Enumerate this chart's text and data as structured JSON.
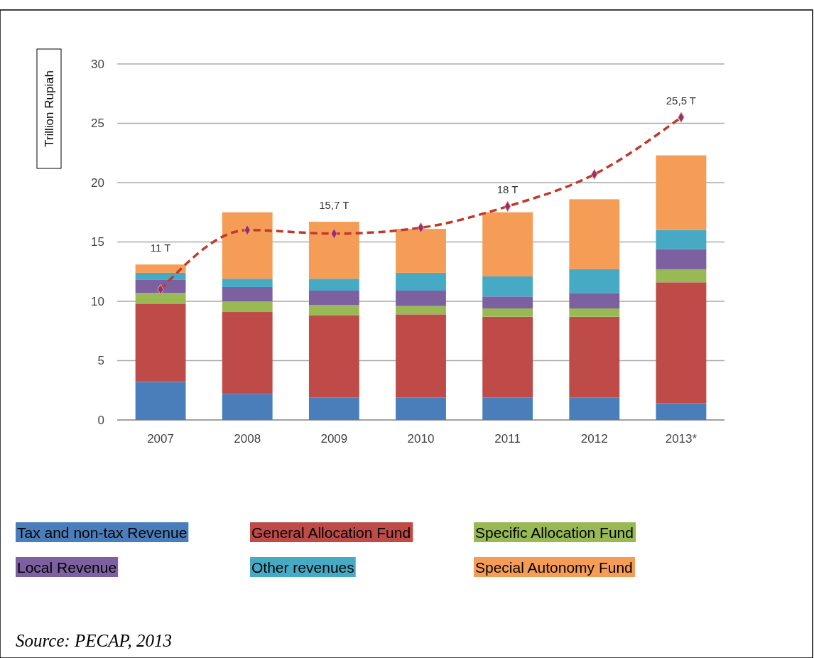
{
  "chart_data": {
    "type": "bar",
    "stacked": true,
    "ylabel": "Trillion Rupiah",
    "categories": [
      "2007",
      "2008",
      "2009",
      "2010",
      "2011",
      "2012",
      "2013*"
    ],
    "ylim": [
      0,
      30
    ],
    "yticks": [
      0,
      5,
      10,
      15,
      20,
      25,
      30
    ],
    "grid": "y",
    "legend": "bottom",
    "series": [
      {
        "name": "Tax and non-tax Revenue",
        "color": "#4a7ebb",
        "values": [
          3.2,
          2.2,
          1.9,
          1.9,
          1.9,
          1.9,
          1.4
        ]
      },
      {
        "name": "General Allocation Fund",
        "color": "#be4b48",
        "values": [
          6.6,
          6.9,
          6.9,
          7.0,
          6.8,
          6.8,
          10.2
        ]
      },
      {
        "name": "Specific Allocation Fund",
        "color": "#98b954",
        "values": [
          0.9,
          0.9,
          0.9,
          0.7,
          0.7,
          0.7,
          1.1
        ]
      },
      {
        "name": "Local Revenue",
        "color": "#7d60a0",
        "values": [
          1.1,
          1.2,
          1.2,
          1.3,
          1.0,
          1.3,
          1.7
        ]
      },
      {
        "name": "Other revenues",
        "color": "#46aac5",
        "values": [
          0.6,
          0.7,
          1.0,
          1.5,
          1.7,
          2.0,
          1.6
        ]
      },
      {
        "name": "Special Autonomy Fund",
        "color": "#f59d56",
        "values": [
          0.7,
          5.6,
          4.8,
          3.7,
          5.4,
          5.9,
          6.3
        ]
      },
      {
        "type": "line",
        "color": "#c0392b",
        "marker": "diamond",
        "line_style": "dashed",
        "values": [
          11,
          16.0,
          15.7,
          16.2,
          18,
          20.7,
          25.5
        ],
        "value_labels": [
          "11 T",
          null,
          "15,7 T",
          null,
          "18 T",
          null,
          "25,5 T"
        ]
      }
    ],
    "annotations": [
      "Source: PECAP, 2013"
    ]
  }
}
